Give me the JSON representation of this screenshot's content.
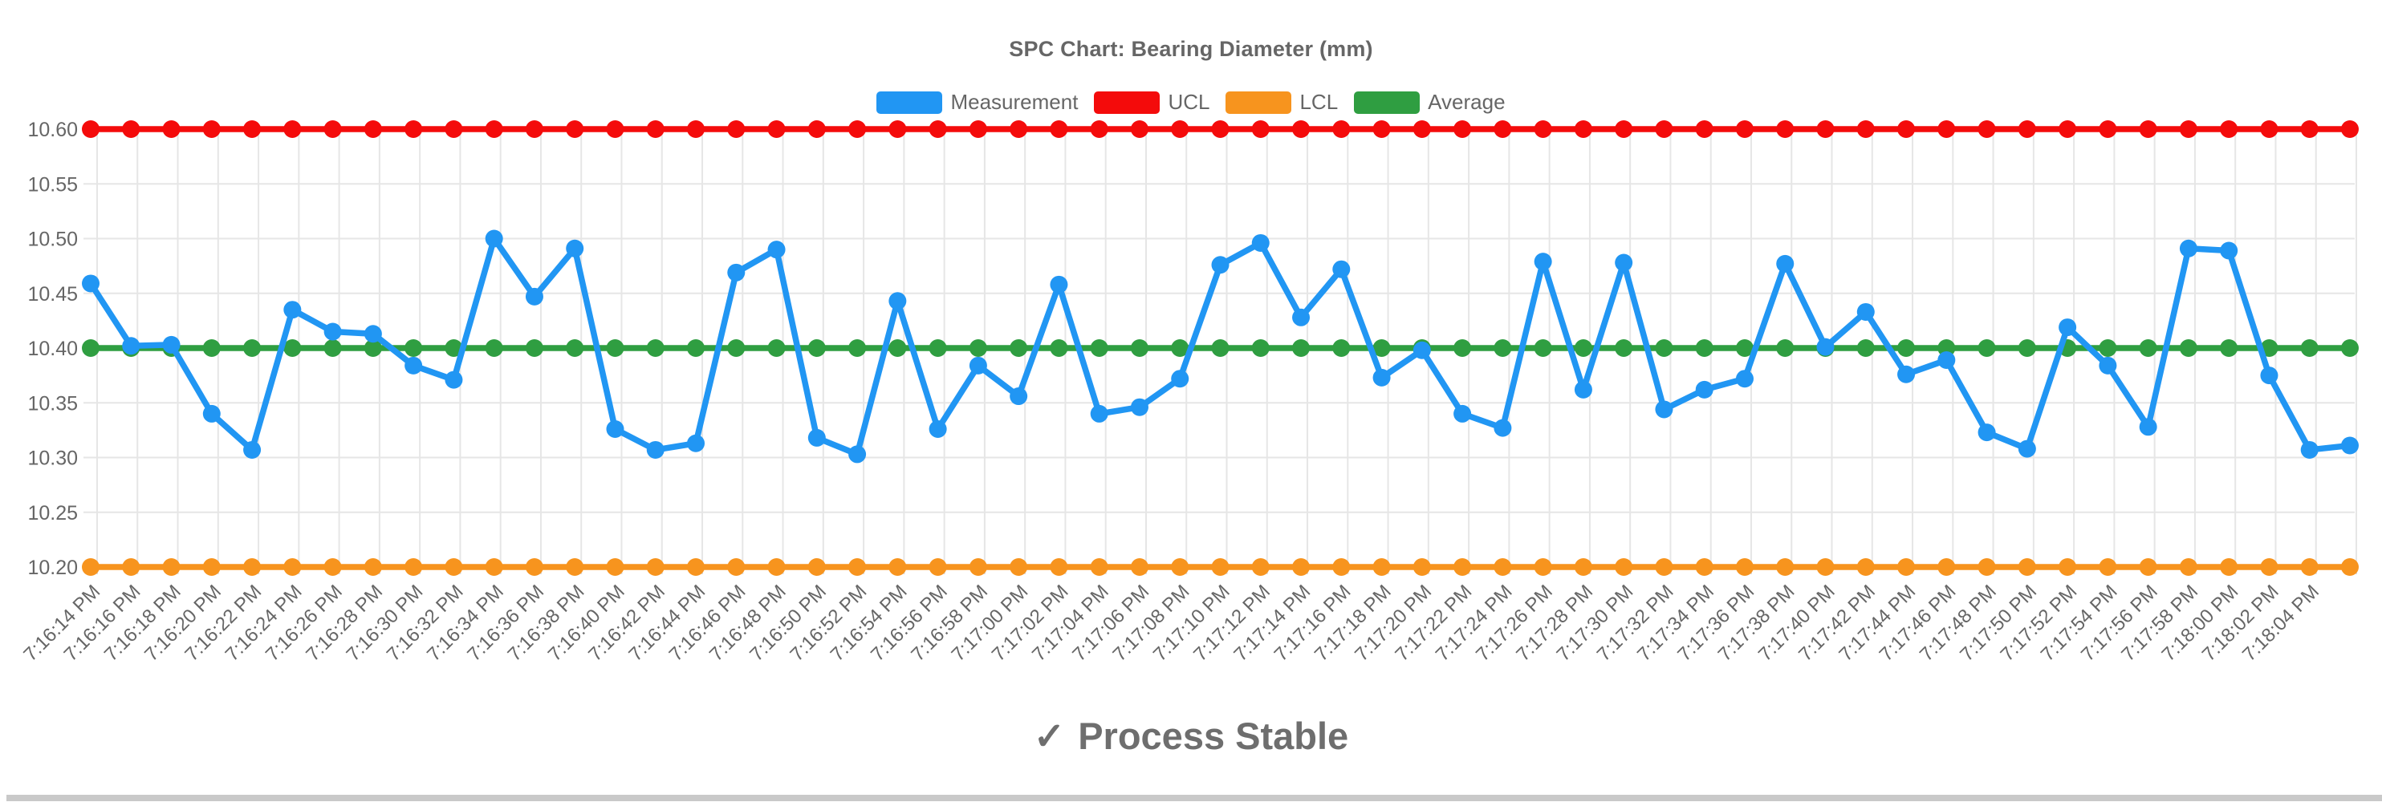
{
  "status": {
    "icon": "✓",
    "text": "Process Stable"
  },
  "chart_data": {
    "type": "line",
    "title": "SPC Chart: Bearing Diameter (mm)",
    "legend_position": "top",
    "grid": true,
    "ylim": [
      10.2,
      10.6
    ],
    "ytick_labels": [
      "10.60",
      "10.55",
      "10.50",
      "10.45",
      "10.40",
      "10.35",
      "10.30",
      "10.25",
      "10.20"
    ],
    "x_labels": [
      "7:16:14 PM",
      "7:16:16 PM",
      "7:16:18 PM",
      "7:16:20 PM",
      "7:16:22 PM",
      "7:16:24 PM",
      "7:16:26 PM",
      "7:16:28 PM",
      "7:16:30 PM",
      "7:16:32 PM",
      "7:16:34 PM",
      "7:16:36 PM",
      "7:16:38 PM",
      "7:16:40 PM",
      "7:16:42 PM",
      "7:16:44 PM",
      "7:16:46 PM",
      "7:16:48 PM",
      "7:16:50 PM",
      "7:16:52 PM",
      "7:16:54 PM",
      "7:16:56 PM",
      "7:16:58 PM",
      "7:17:00 PM",
      "7:17:02 PM",
      "7:17:04 PM",
      "7:17:06 PM",
      "7:17:08 PM",
      "7:17:10 PM",
      "7:17:12 PM",
      "7:17:14 PM",
      "7:17:16 PM",
      "7:17:18 PM",
      "7:17:20 PM",
      "7:17:22 PM",
      "7:17:24 PM",
      "7:17:26 PM",
      "7:17:28 PM",
      "7:17:30 PM",
      "7:17:32 PM",
      "7:17:34 PM",
      "7:17:36 PM",
      "7:17:38 PM",
      "7:17:40 PM",
      "7:17:42 PM",
      "7:17:44 PM",
      "7:17:46 PM",
      "7:17:48 PM",
      "7:17:50 PM",
      "7:17:52 PM",
      "7:17:54 PM",
      "7:17:56 PM",
      "7:17:58 PM",
      "7:18:00 PM",
      "7:18:02 PM",
      "7:18:04 PM",
      ""
    ],
    "series": [
      {
        "name": "Measurement",
        "color": "#2196F3",
        "values": [
          10.459,
          10.402,
          10.403,
          10.34,
          10.307,
          10.435,
          10.415,
          10.413,
          10.384,
          10.371,
          10.5,
          10.447,
          10.491,
          10.326,
          10.307,
          10.313,
          10.469,
          10.49,
          10.318,
          10.303,
          10.443,
          10.326,
          10.384,
          10.356,
          10.458,
          10.34,
          10.346,
          10.372,
          10.476,
          10.496,
          10.428,
          10.472,
          10.373,
          10.398,
          10.34,
          10.327,
          10.479,
          10.362,
          10.478,
          10.344,
          10.362,
          10.372,
          10.477,
          10.401,
          10.433,
          10.376,
          10.389,
          10.323,
          10.308,
          10.419,
          10.384,
          10.328,
          10.491,
          10.489,
          10.375,
          10.307,
          10.311
        ]
      },
      {
        "name": "UCL",
        "color": "#F40B0B",
        "constant": 10.6
      },
      {
        "name": "LCL",
        "color": "#F7941E",
        "constant": 10.2
      },
      {
        "name": "Average",
        "color": "#2F9E41",
        "constant": 10.4
      }
    ]
  },
  "colors": {
    "grid": "#E6E6E6",
    "axis_tick": "#DCDCDC",
    "tick_text": "#666666",
    "title_text": "#666666",
    "status_text": "#6E6E6E",
    "bottom_bar": "#C9C9C9",
    "background": "#FFFFFF"
  }
}
